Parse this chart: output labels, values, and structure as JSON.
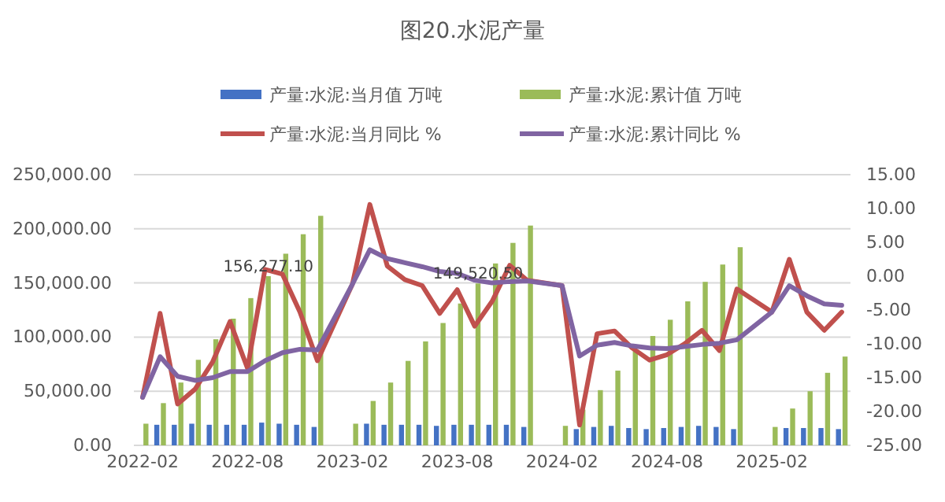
{
  "chart_data": {
    "type": "bar",
    "title": "图20.水泥产量",
    "categories": [
      "2022-02",
      null,
      null,
      null,
      null,
      null,
      "2022-08",
      null,
      null,
      null,
      null,
      null,
      "2023-02",
      null,
      null,
      null,
      null,
      null,
      "2023-08",
      null,
      null,
      null,
      null,
      null,
      "2024-02",
      null,
      null,
      null,
      null,
      null,
      "2024-08",
      null,
      null,
      null,
      null,
      null,
      "2025-02",
      null,
      null,
      null,
      null
    ],
    "series": [
      {
        "name": "产量:水泥:当月值 万吨",
        "color": "#4472c4",
        "values": [
          null,
          19000,
          19000,
          20000,
          19000,
          19000,
          19000,
          21000,
          20000,
          19000,
          17000,
          null,
          null,
          20000,
          19000,
          19000,
          19000,
          18000,
          19000,
          19000,
          19000,
          19000,
          17000,
          null,
          null,
          15000,
          17000,
          18000,
          16000,
          15000,
          16000,
          17000,
          18000,
          17000,
          15000,
          null,
          null,
          16000,
          16000,
          16000,
          15000
        ]
      },
      {
        "name": "产量:水泥:累计值 万吨",
        "color": "#9bbb59",
        "values": [
          20000,
          39000,
          58000,
          79000,
          98000,
          117000,
          136000,
          156277.1,
          177000,
          195000,
          212000,
          null,
          20000,
          41000,
          58000,
          78000,
          96000,
          113000,
          131000,
          149520.5,
          168000,
          187000,
          203000,
          null,
          18000,
          33000,
          51000,
          69000,
          87000,
          101000,
          116000,
          133000,
          151000,
          167000,
          183000,
          null,
          17000,
          34000,
          50000,
          67000,
          82000
        ],
        "value_labels": [
          null,
          null,
          null,
          null,
          null,
          null,
          null,
          "156,277.10",
          null,
          null,
          null,
          null,
          null,
          null,
          null,
          null,
          null,
          null,
          null,
          "149,520.50",
          null,
          null,
          null,
          null,
          null,
          null,
          null,
          null,
          null,
          null,
          null,
          null,
          null,
          null,
          null,
          null,
          null,
          null,
          null,
          null,
          null
        ]
      },
      {
        "name": "产量:水泥:当月同比 %",
        "type": "line",
        "axis": "y2",
        "color": "#c0504d",
        "values": [
          -17.9,
          -5.5,
          -18.9,
          -16.7,
          -12.7,
          -6.7,
          -13.6,
          1.0,
          0.3,
          -5.3,
          -12.5,
          null,
          -1.2,
          10.6,
          1.5,
          -0.5,
          -1.4,
          -5.5,
          -2.0,
          -7.4,
          -3.7,
          1.6,
          -0.6,
          null,
          -1.4,
          -22.0,
          -8.5,
          -8.1,
          -10.6,
          -12.4,
          -11.6,
          -10.0,
          -8.0,
          -11.0,
          -1.9,
          null,
          -5.3,
          2.5,
          -5.3,
          -8.0,
          -5.3
        ]
      },
      {
        "name": "产量:水泥:累计同比 %",
        "type": "line",
        "axis": "y2",
        "color": "#8064a2",
        "values": [
          -17.9,
          -11.9,
          -14.8,
          -15.4,
          -15.0,
          -14.1,
          -14.1,
          -12.5,
          -11.3,
          -10.8,
          -10.9,
          null,
          -1.2,
          3.9,
          2.6,
          2.0,
          1.4,
          0.7,
          0.4,
          -0.6,
          -1.0,
          -0.8,
          -0.7,
          null,
          -1.4,
          -11.8,
          -10.2,
          -9.8,
          -10.3,
          -10.6,
          -10.7,
          -10.4,
          -10.1,
          -9.9,
          -9.4,
          null,
          -5.3,
          -1.4,
          -2.9,
          -4.1,
          -4.3
        ]
      }
    ],
    "ylim": [
      0,
      250000
    ],
    "yticks": [
      {
        "value": 0,
        "label": "0.00"
      },
      {
        "value": 50000,
        "label": "50,000.00"
      },
      {
        "value": 100000,
        "label": "100,000.00"
      },
      {
        "value": 150000,
        "label": "150,000.00"
      },
      {
        "value": 200000,
        "label": "200,000.00"
      },
      {
        "value": 250000,
        "label": "250,000.00"
      }
    ],
    "y2lim": [
      -25,
      15
    ],
    "y2ticks": [
      {
        "value": -25,
        "label": "-25.00"
      },
      {
        "value": -20,
        "label": "-20.00"
      },
      {
        "value": -15,
        "label": "-15.00"
      },
      {
        "value": -10,
        "label": "-10.00"
      },
      {
        "value": -5,
        "label": "-5.00"
      },
      {
        "value": 0,
        "label": "0.00"
      },
      {
        "value": 5,
        "label": "5.00"
      },
      {
        "value": 10,
        "label": "10.00"
      },
      {
        "value": 15,
        "label": "15.00"
      }
    ],
    "grid": "y",
    "legend": "top"
  }
}
